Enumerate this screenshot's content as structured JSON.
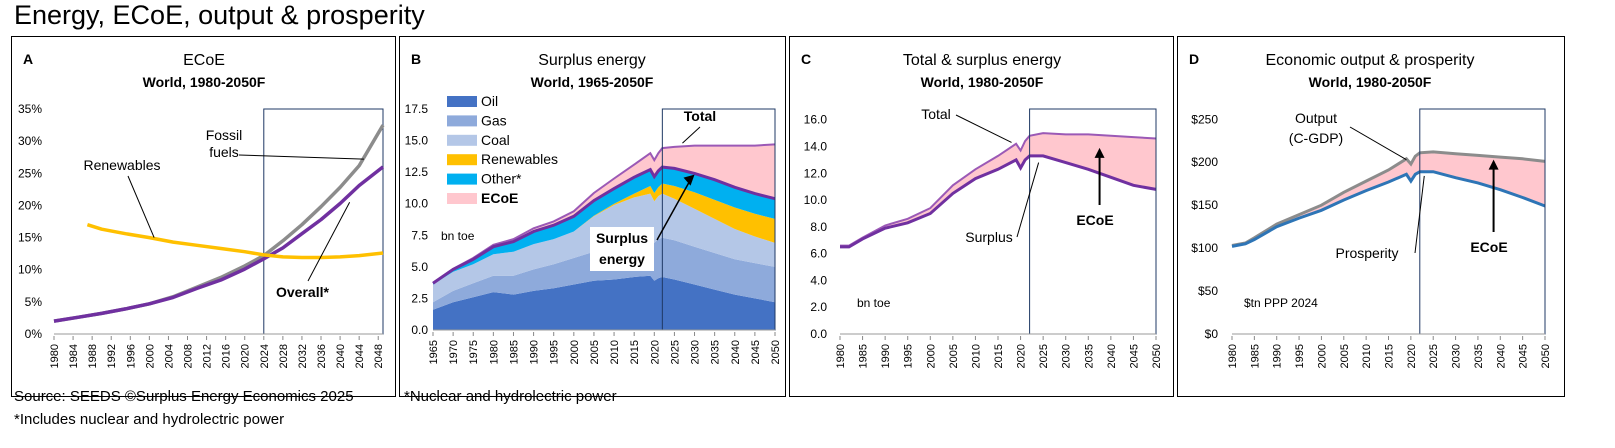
{
  "page_title": "Energy, ECoE, output & prosperity",
  "footer": {
    "source": "Source: SEEDS  ©Surplus Energy Economics 2025",
    "note_a": "*Includes nuclear and hydrolectric power",
    "note_b": "*Nuclear and hydrolectric power"
  },
  "colors": {
    "fossil": "#8c8c8c",
    "overall": "#7030a0",
    "renewables_line": "#ffc000",
    "oil": "#4472c4",
    "gas": "#8eaadb",
    "coal": "#b4c7e7",
    "renewables": "#ffc000",
    "other": "#00b0f0",
    "ecoe_fill": "#ffc7ce",
    "total_line": "#9b59b6",
    "surplus_line": "#7030a0",
    "output_line": "#8c8c8c",
    "prosperity_line": "#2e75b6"
  },
  "chart_data": [
    {
      "id": "A",
      "type": "line",
      "letter": "A",
      "title": "ECoE",
      "subtitle": "World, 1980-2050F",
      "xlabel": "",
      "ylabel": "",
      "x_ticks": [
        "1980",
        "1984",
        "1988",
        "1992",
        "1996",
        "2000",
        "2004",
        "2008",
        "2012",
        "2016",
        "2020",
        "2024",
        "2028",
        "2032",
        "2036",
        "2040",
        "2044",
        "2048"
      ],
      "y_ticks": [
        "0%",
        "5%",
        "10%",
        "15%",
        "20%",
        "25%",
        "30%",
        "35%"
      ],
      "ylim": [
        0,
        35
      ],
      "xlim": [
        1980,
        2049
      ],
      "forecast_start": 2024,
      "series": [
        {
          "name": "Fossil fuels",
          "points": [
            [
              1980,
              2
            ],
            [
              1985,
              2.6
            ],
            [
              1990,
              3.2
            ],
            [
              1995,
              3.9
            ],
            [
              2000,
              4.7
            ],
            [
              2005,
              5.8
            ],
            [
              2010,
              7.3
            ],
            [
              2015,
              8.8
            ],
            [
              2020,
              10.6
            ],
            [
              2024,
              12.2
            ],
            [
              2028,
              14.5
            ],
            [
              2032,
              17
            ],
            [
              2036,
              19.8
            ],
            [
              2040,
              22.8
            ],
            [
              2044,
              26.2
            ],
            [
              2049,
              32.5
            ]
          ]
        },
        {
          "name": "Overall*",
          "points": [
            [
              1980,
              2
            ],
            [
              1985,
              2.6
            ],
            [
              1990,
              3.2
            ],
            [
              1995,
              3.9
            ],
            [
              2000,
              4.7
            ],
            [
              2005,
              5.7
            ],
            [
              2010,
              7.1
            ],
            [
              2015,
              8.4
            ],
            [
              2020,
              10.1
            ],
            [
              2024,
              11.7
            ],
            [
              2028,
              13.4
            ],
            [
              2032,
              15.6
            ],
            [
              2036,
              17.8
            ],
            [
              2040,
              20.3
            ],
            [
              2044,
              23.1
            ],
            [
              2049,
              26
            ]
          ]
        },
        {
          "name": "Renewables",
          "points": [
            [
              1987,
              17
            ],
            [
              1990,
              16.3
            ],
            [
              1995,
              15.6
            ],
            [
              2000,
              15
            ],
            [
              2005,
              14.3
            ],
            [
              2010,
              13.8
            ],
            [
              2015,
              13.3
            ],
            [
              2020,
              12.8
            ],
            [
              2024,
              12.3
            ],
            [
              2028,
              12
            ],
            [
              2032,
              11.9
            ],
            [
              2036,
              11.9
            ],
            [
              2040,
              12
            ],
            [
              2044,
              12.2
            ],
            [
              2049,
              12.6
            ]
          ]
        }
      ],
      "labels": {
        "fossil": "Fossil",
        "fossil2": "fuels",
        "renewables": "Renewables",
        "overall": "Overall*"
      }
    },
    {
      "id": "B",
      "type": "area",
      "letter": "B",
      "title": "Surplus energy",
      "subtitle": "World, 1965-2050F",
      "xlabel": "",
      "ylabel": "bn toe",
      "x_ticks": [
        "1965",
        "1970",
        "1975",
        "1980",
        "1985",
        "1990",
        "1995",
        "2000",
        "2005",
        "2010",
        "2015",
        "2020",
        "2025",
        "2030",
        "2035",
        "2040",
        "2045",
        "2050"
      ],
      "y_ticks": [
        "0.0",
        "2.5",
        "5.0",
        "7.5",
        "10.0",
        "12.5",
        "15.0",
        "17.5"
      ],
      "ylim": [
        0,
        17.5
      ],
      "xlim": [
        1965,
        2050
      ],
      "forecast_start": 2022,
      "years": [
        1965,
        1970,
        1975,
        1980,
        1985,
        1990,
        1995,
        2000,
        2005,
        2010,
        2015,
        2019,
        2020,
        2021,
        2022,
        2025,
        2030,
        2035,
        2040,
        2045,
        2050
      ],
      "series": [
        {
          "name": "Oil",
          "values": [
            1.6,
            2.2,
            2.6,
            3.0,
            2.8,
            3.1,
            3.3,
            3.6,
            3.9,
            4.0,
            4.2,
            4.3,
            3.9,
            4.1,
            4.2,
            4.0,
            3.6,
            3.2,
            2.8,
            2.5,
            2.2
          ]
        },
        {
          "name": "Gas",
          "values": [
            0.6,
            0.9,
            1.1,
            1.3,
            1.5,
            1.7,
            1.9,
            2.1,
            2.3,
            2.6,
            2.9,
            3.1,
            3.0,
            3.1,
            3.1,
            3.1,
            3.0,
            2.9,
            2.8,
            2.8,
            2.8
          ]
        },
        {
          "name": "Coal",
          "values": [
            1.4,
            1.5,
            1.5,
            1.7,
            1.9,
            2.0,
            2.0,
            2.1,
            2.8,
            3.3,
            3.4,
            3.4,
            3.3,
            3.4,
            3.5,
            3.3,
            3.0,
            2.7,
            2.4,
            2.1,
            1.9
          ]
        },
        {
          "name": "Renewables",
          "values": [
            0,
            0,
            0,
            0,
            0,
            0,
            0,
            0,
            0.05,
            0.1,
            0.3,
            0.6,
            0.65,
            0.7,
            0.8,
            1.0,
            1.3,
            1.5,
            1.7,
            1.8,
            1.9
          ]
        },
        {
          "name": "Other*",
          "values": [
            0.1,
            0.2,
            0.4,
            0.6,
            0.8,
            1.0,
            1.1,
            1.2,
            1.2,
            1.2,
            1.3,
            1.3,
            1.3,
            1.3,
            1.3,
            1.4,
            1.5,
            1.6,
            1.6,
            1.6,
            1.6
          ]
        },
        {
          "name": "ECoE",
          "values": [
            0.05,
            0.05,
            0.1,
            0.15,
            0.2,
            0.25,
            0.3,
            0.4,
            0.6,
            0.8,
            1.0,
            1.3,
            1.3,
            1.4,
            1.5,
            1.7,
            2.2,
            2.7,
            3.3,
            3.8,
            4.3
          ]
        }
      ],
      "legend": [
        "Oil",
        "Gas",
        "Coal",
        "Renewables",
        "Other*",
        "ECoE"
      ],
      "labels": {
        "total": "Total",
        "surplus1": "Surplus",
        "surplus2": "energy"
      }
    },
    {
      "id": "C",
      "type": "area",
      "letter": "C",
      "title": "Total & surplus energy",
      "subtitle": "World, 1980-2050F",
      "xlabel": "",
      "ylabel": "bn toe",
      "x_ticks": [
        "1980",
        "1985",
        "1990",
        "1995",
        "2000",
        "2005",
        "2010",
        "2015",
        "2020",
        "2025",
        "2030",
        "2035",
        "2040",
        "2045",
        "2050"
      ],
      "y_ticks": [
        "0.0",
        "2.0",
        "4.0",
        "6.0",
        "8.0",
        "10.0",
        "12.0",
        "14.0",
        "16.0"
      ],
      "ylim": [
        0,
        16.8
      ],
      "xlim": [
        1980,
        2050
      ],
      "forecast_start": 2022,
      "series": [
        {
          "name": "Total",
          "points": [
            [
              1980,
              6.6
            ],
            [
              1982,
              6.6
            ],
            [
              1985,
              7.2
            ],
            [
              1990,
              8.1
            ],
            [
              1995,
              8.6
            ],
            [
              2000,
              9.4
            ],
            [
              2005,
              11.1
            ],
            [
              2010,
              12.3
            ],
            [
              2015,
              13.3
            ],
            [
              2019,
              14.2
            ],
            [
              2020,
              13.7
            ],
            [
              2021,
              14.4
            ],
            [
              2022,
              14.8
            ],
            [
              2025,
              15
            ],
            [
              2030,
              14.9
            ],
            [
              2035,
              14.9
            ],
            [
              2040,
              14.8
            ],
            [
              2045,
              14.7
            ],
            [
              2050,
              14.6
            ]
          ]
        },
        {
          "name": "Surplus",
          "points": [
            [
              1980,
              6.5
            ],
            [
              1982,
              6.5
            ],
            [
              1985,
              7.1
            ],
            [
              1990,
              7.9
            ],
            [
              1995,
              8.3
            ],
            [
              2000,
              9.0
            ],
            [
              2005,
              10.5
            ],
            [
              2010,
              11.6
            ],
            [
              2015,
              12.3
            ],
            [
              2019,
              13.0
            ],
            [
              2020,
              12.4
            ],
            [
              2021,
              13.0
            ],
            [
              2022,
              13.3
            ],
            [
              2025,
              13.3
            ],
            [
              2030,
              12.8
            ],
            [
              2035,
              12.3
            ],
            [
              2040,
              11.7
            ],
            [
              2045,
              11.1
            ],
            [
              2050,
              10.8
            ]
          ]
        }
      ],
      "labels": {
        "total": "Total",
        "surplus": "Surplus",
        "ecoe": "ECoE"
      }
    },
    {
      "id": "D",
      "type": "area",
      "letter": "D",
      "title": "Economic output & prosperity",
      "subtitle": "World, 1980-2050F",
      "xlabel": "",
      "ylabel": "$tn PPP 2024",
      "x_ticks": [
        "1980",
        "1985",
        "1990",
        "1995",
        "2000",
        "2005",
        "2010",
        "2015",
        "2020",
        "2025",
        "2030",
        "2035",
        "2040",
        "2045",
        "2050"
      ],
      "y_ticks": [
        "$0",
        "$50",
        "$100",
        "$150",
        "$200",
        "$250"
      ],
      "ylim": [
        0,
        262
      ],
      "xlim": [
        1980,
        2050
      ],
      "forecast_start": 2022,
      "series": [
        {
          "name": "Output (C-GDP)",
          "points": [
            [
              1980,
              103
            ],
            [
              1983,
              106
            ],
            [
              1985,
              112
            ],
            [
              1990,
              128
            ],
            [
              1995,
              139
            ],
            [
              2000,
              150
            ],
            [
              2005,
              165
            ],
            [
              2010,
              178
            ],
            [
              2015,
              191
            ],
            [
              2019,
              204
            ],
            [
              2020,
              198
            ],
            [
              2021,
              207
            ],
            [
              2022,
              211
            ],
            [
              2025,
              212
            ],
            [
              2030,
              210
            ],
            [
              2035,
              208
            ],
            [
              2040,
              206
            ],
            [
              2045,
              204
            ],
            [
              2050,
              201
            ]
          ]
        },
        {
          "name": "Prosperity",
          "points": [
            [
              1980,
              102
            ],
            [
              1983,
              105
            ],
            [
              1985,
              110
            ],
            [
              1990,
              125
            ],
            [
              1995,
              135
            ],
            [
              2000,
              144
            ],
            [
              2005,
              156
            ],
            [
              2010,
              167
            ],
            [
              2015,
              177
            ],
            [
              2019,
              186
            ],
            [
              2020,
              178
            ],
            [
              2021,
              186
            ],
            [
              2022,
              189
            ],
            [
              2025,
              189
            ],
            [
              2030,
              182
            ],
            [
              2035,
              176
            ],
            [
              2040,
              168
            ],
            [
              2045,
              159
            ],
            [
              2050,
              149
            ]
          ]
        }
      ],
      "labels": {
        "output1": "Output",
        "output2": "(C-GDP)",
        "prosperity": "Prosperity",
        "ecoe": "ECoE"
      }
    }
  ]
}
